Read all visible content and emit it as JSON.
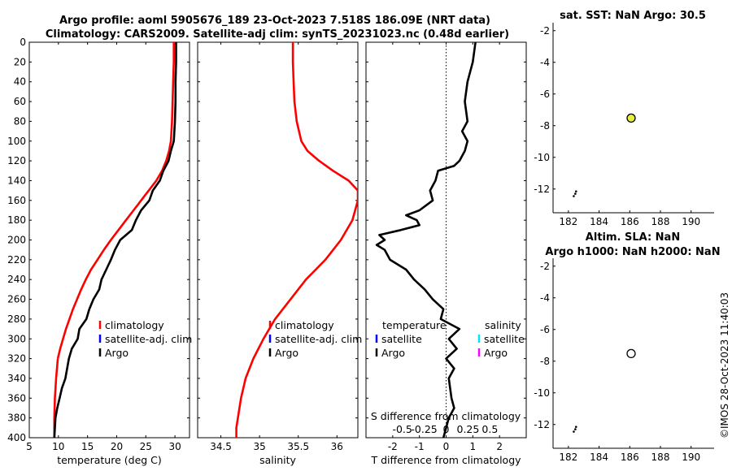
{
  "figure": {
    "title_line1": "Argo profile: aoml 5905676_189 23-Oct-2023 7.518S 186.09E (NRT data)",
    "title_line2": "Climatology: CARS2009. Satellite-adj clim: synTS_20231023.nc (0.48d earlier)",
    "timestamp": "©IMOS 28-Oct-2023 11:40:03"
  },
  "colors": {
    "climatology": "#ff0000",
    "satellite_adj": "#0000ff",
    "argo": "#000000",
    "sal_satellite": "#00e5ff",
    "sal_argo": "#ff00ff",
    "marker_fill": "#e6f03c"
  },
  "chart_data": [
    {
      "id": "temperature",
      "type": "line",
      "xlabel": "temperature (deg C)",
      "ylabel": "",
      "xlim": [
        5,
        32.5
      ],
      "ylim": [
        400,
        0
      ],
      "xticks": [
        5,
        10,
        15,
        20,
        25,
        30
      ],
      "yticks": [
        0,
        20,
        40,
        60,
        80,
        100,
        120,
        140,
        160,
        180,
        200,
        220,
        240,
        260,
        280,
        300,
        320,
        340,
        360,
        380,
        400
      ],
      "legend": [
        "climatology",
        "satellite-adj. clim",
        "Argo"
      ],
      "series": [
        {
          "name": "climatology",
          "color": "#ff0000",
          "x": [
            29.8,
            29.8,
            29.7,
            29.6,
            29.5,
            29.3,
            29.0,
            28.5,
            27.8,
            26.8,
            25.5,
            24.2,
            22.9,
            21.6,
            20.3,
            19.0,
            17.8,
            16.7,
            15.6,
            14.7,
            13.9,
            13.2,
            12.5,
            11.9,
            11.3,
            10.8,
            10.3,
            9.9
          ],
          "y": [
            0,
            20,
            40,
            60,
            80,
            100,
            110,
            120,
            130,
            140,
            150,
            160,
            170,
            180,
            190,
            200,
            210,
            220,
            230,
            240,
            250,
            260,
            270,
            280,
            290,
            300,
            310,
            320
          ]
        },
        {
          "name": "climatology-deep",
          "color": "#ff0000",
          "x": [
            9.9,
            9.6,
            9.4,
            9.3,
            9.3
          ],
          "y": [
            320,
            340,
            360,
            380,
            400
          ]
        },
        {
          "name": "Argo",
          "color": "#000000",
          "x": [
            30.2,
            30.2,
            30.1,
            30.1,
            30.0,
            29.8,
            29.3,
            28.9,
            28.0,
            27.4,
            26.2,
            25.6,
            24.2,
            23.3,
            22.6,
            20.6,
            19.7,
            19.0,
            18.2,
            17.4,
            17.0,
            16.0,
            15.3,
            14.8,
            13.6,
            13.3,
            12.3,
            11.8,
            11.2,
            10.6,
            10.2,
            9.8,
            9.5,
            9.3
          ],
          "y": [
            0,
            20,
            40,
            60,
            80,
            100,
            110,
            120,
            130,
            140,
            150,
            160,
            170,
            180,
            190,
            200,
            210,
            220,
            230,
            240,
            250,
            260,
            270,
            280,
            290,
            300,
            310,
            320,
            340,
            350,
            360,
            370,
            380,
            400
          ]
        }
      ]
    },
    {
      "id": "salinity",
      "type": "line",
      "xlabel": "salinity",
      "ylabel": "",
      "xlim": [
        34.2,
        36.27
      ],
      "ylim": [
        400,
        0
      ],
      "xticks": [
        34.5,
        35,
        35.5,
        36
      ],
      "yticks": [
        0,
        20,
        40,
        60,
        80,
        100,
        120,
        140,
        160,
        180,
        200,
        220,
        240,
        260,
        280,
        300,
        320,
        340,
        360,
        380,
        400
      ],
      "legend": [
        "climatology",
        "satellite-adj. clim",
        "Argo"
      ],
      "series": [
        {
          "name": "climatology",
          "color": "#ff0000",
          "x": [
            35.43,
            35.43,
            35.44,
            35.45,
            35.48,
            35.54,
            35.62,
            35.77,
            35.95,
            36.15,
            36.27,
            36.27,
            36.2,
            36.05,
            35.85,
            35.6,
            35.4,
            35.2,
            35.05,
            34.92,
            34.82,
            34.76,
            34.72,
            34.7,
            34.7
          ],
          "y": [
            0,
            20,
            40,
            60,
            80,
            100,
            110,
            120,
            130,
            140,
            150,
            160,
            180,
            200,
            220,
            240,
            260,
            280,
            300,
            320,
            340,
            360,
            380,
            390,
            400
          ]
        }
      ]
    },
    {
      "id": "difference",
      "type": "line",
      "xlabel": "T difference from climatology",
      "xlabel_top": "S difference from climatology",
      "xlim": [
        -3,
        3
      ],
      "ylim": [
        400,
        0
      ],
      "xticks": [
        -2,
        -1,
        0,
        1,
        2
      ],
      "top_ticks": [
        -0.5,
        -0.25,
        0,
        0.25,
        0.5
      ],
      "yticks": [
        0,
        20,
        40,
        60,
        80,
        100,
        120,
        140,
        160,
        180,
        200,
        220,
        240,
        260,
        280,
        300,
        320,
        340,
        360,
        380,
        400
      ],
      "legend_temperature": [
        "temperature",
        "satellite",
        "Argo"
      ],
      "legend_salinity": [
        "salinity",
        "satellite",
        "Argo"
      ],
      "series": [
        {
          "name": "Argo T diff",
          "color": "#000000",
          "x": [
            1.1,
            1.0,
            0.8,
            0.7,
            0.8,
            0.6,
            0.8,
            0.7,
            0.5,
            0.3,
            -0.3,
            -0.4,
            -0.6,
            -0.5,
            -1.0,
            -1.5,
            -1.1,
            -1.0,
            -1.7,
            -2.5,
            -2.3,
            -2.6,
            -2.3,
            -2.1,
            -1.5,
            -1.2,
            -0.8,
            -0.5,
            -0.1,
            -0.2,
            0.5,
            0.1,
            0.4,
            0.0,
            0.3,
            0.1,
            0.2,
            0.3,
            0.1,
            -0.1
          ],
          "y": [
            0,
            20,
            40,
            60,
            80,
            90,
            100,
            110,
            120,
            125,
            130,
            140,
            150,
            160,
            170,
            175,
            180,
            185,
            190,
            195,
            200,
            205,
            210,
            220,
            230,
            240,
            250,
            260,
            270,
            280,
            290,
            300,
            310,
            320,
            330,
            340,
            360,
            370,
            380,
            400
          ]
        }
      ]
    },
    {
      "id": "sst_map",
      "type": "scatter",
      "title": "sat. SST: NaN Argo: 30.5",
      "xlim": [
        181,
        191.5
      ],
      "ylim": [
        -13.5,
        -1.5
      ],
      "xticks": [
        182,
        184,
        186,
        188,
        190
      ],
      "yticks": [
        -2,
        -4,
        -6,
        -8,
        -10,
        -12
      ],
      "series": [
        {
          "name": "profile",
          "x": [
            186.09
          ],
          "y": [
            -7.52
          ],
          "color": "#e6f03c"
        },
        {
          "name": "track",
          "x": [
            182.35,
            182.45,
            182.5
          ],
          "y": [
            -12.45,
            -12.3,
            -12.15
          ],
          "color": "#000000"
        }
      ]
    },
    {
      "id": "sla_map",
      "type": "scatter",
      "title_line1": "Altim. SLA: NaN",
      "title_line2": "Argo h1000: NaN h2000: NaN",
      "xlim": [
        181,
        191.5
      ],
      "ylim": [
        -13.5,
        -1.5
      ],
      "xticks": [
        182,
        184,
        186,
        188,
        190
      ],
      "yticks": [
        -2,
        -4,
        -6,
        -8,
        -10,
        -12
      ],
      "series": [
        {
          "name": "profile",
          "x": [
            186.09
          ],
          "y": [
            -7.52
          ],
          "color": "#ffffff"
        },
        {
          "name": "track",
          "x": [
            182.35,
            182.45,
            182.5
          ],
          "y": [
            -12.45,
            -12.3,
            -12.15
          ],
          "color": "#000000"
        }
      ]
    }
  ]
}
